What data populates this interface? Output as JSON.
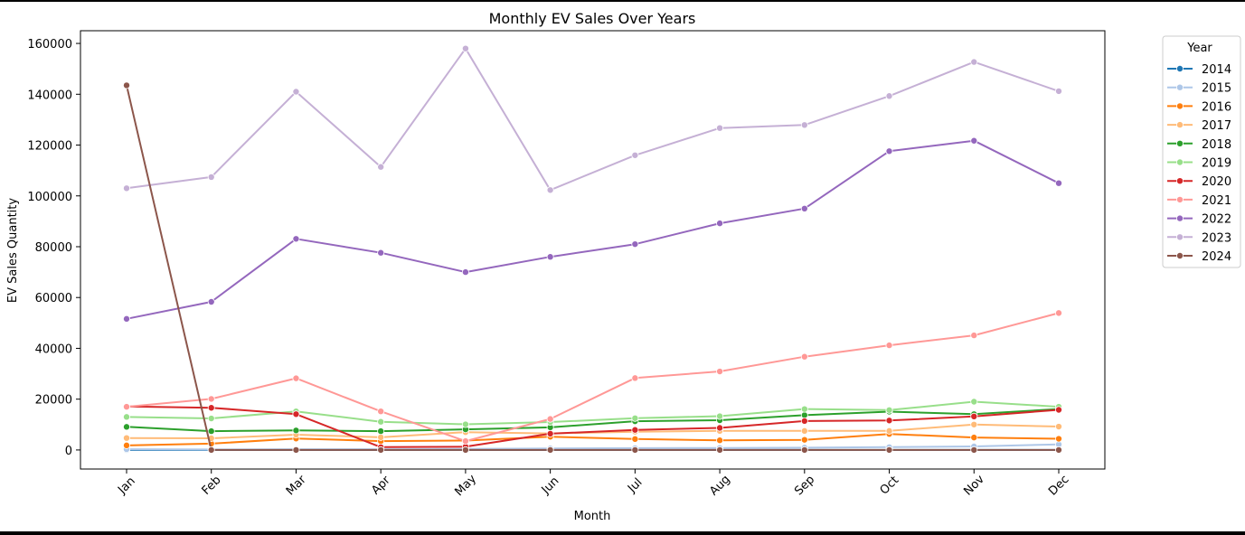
{
  "chart_data": {
    "type": "line",
    "title": "Monthly EV Sales Over Years",
    "xlabel": "Month",
    "ylabel": "EV Sales Quantity",
    "categories": [
      "Jan",
      "Feb",
      "Mar",
      "Apr",
      "May",
      "Jun",
      "Jul",
      "Aug",
      "Sep",
      "Oct",
      "Nov",
      "Dec"
    ],
    "ylim": [
      -7500,
      165000
    ],
    "yticks": [
      0,
      20000,
      40000,
      60000,
      80000,
      100000,
      120000,
      140000,
      160000
    ],
    "ytick_labels": [
      "0",
      "20000",
      "40000",
      "60000",
      "80000",
      "100000",
      "120000",
      "140000",
      "160000"
    ],
    "grid": false,
    "legend": {
      "title": "Year",
      "placement": "outside-top-right"
    },
    "series": [
      {
        "name": "2014",
        "color": "#1f77b4",
        "values": [
          0,
          0,
          0,
          0,
          0,
          0,
          0,
          0,
          0,
          0,
          0,
          0
        ]
      },
      {
        "name": "2015",
        "color": "#aec7e8",
        "values": [
          300,
          200,
          300,
          300,
          400,
          600,
          700,
          800,
          900,
          1100,
          1400,
          2200
        ]
      },
      {
        "name": "2016",
        "color": "#ff7f0e",
        "values": [
          1800,
          2500,
          4500,
          3500,
          3700,
          5200,
          4300,
          3800,
          4000,
          6300,
          4900,
          4400
        ]
      },
      {
        "name": "2017",
        "color": "#ffbb78",
        "values": [
          4700,
          4600,
          6000,
          5000,
          7000,
          6500,
          7200,
          7500,
          7500,
          7500,
          10000,
          9200
        ]
      },
      {
        "name": "2018",
        "color": "#2ca02c",
        "values": [
          9100,
          7400,
          7700,
          7400,
          8100,
          8900,
          11300,
          11700,
          13700,
          15100,
          14100,
          16100
        ]
      },
      {
        "name": "2019",
        "color": "#98df8a",
        "values": [
          13000,
          12400,
          15200,
          11100,
          10100,
          11000,
          12500,
          13300,
          16100,
          15700,
          19000,
          17000
        ]
      },
      {
        "name": "2020",
        "color": "#d62728",
        "values": [
          17100,
          16600,
          14100,
          1100,
          1300,
          6400,
          7900,
          8700,
          11400,
          11600,
          13200,
          15800
        ]
      },
      {
        "name": "2021",
        "color": "#ff9896",
        "values": [
          17000,
          20100,
          28200,
          15200,
          3500,
          12200,
          28300,
          30900,
          36700,
          41200,
          45100,
          53900
        ]
      },
      {
        "name": "2022",
        "color": "#9467bd",
        "values": [
          51600,
          58300,
          83100,
          77600,
          70000,
          76000,
          81000,
          89200,
          95000,
          117600,
          121700,
          105000
        ]
      },
      {
        "name": "2023",
        "color": "#c5b0d5",
        "values": [
          103000,
          107400,
          141000,
          111400,
          158000,
          102300,
          116000,
          126700,
          127900,
          139300,
          152700,
          141200
        ]
      },
      {
        "name": "2024",
        "color": "#8c564b",
        "values": [
          143500,
          0,
          0,
          0,
          0,
          0,
          0,
          0,
          0,
          0,
          0,
          0
        ]
      }
    ]
  }
}
